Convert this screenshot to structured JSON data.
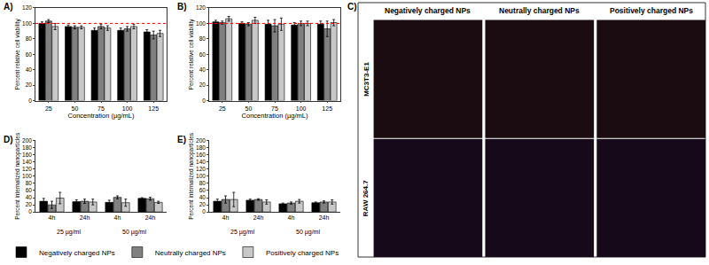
{
  "chart_data": [
    {
      "panel": "A)",
      "type": "bar",
      "x_label": "Concentration (µg/mL)",
      "y_label": "Percent relative cell viability",
      "categories": [
        "25",
        "50",
        "75",
        "100",
        "125"
      ],
      "series": [
        {
          "name": "Negatively charged NPs",
          "color": "#000000",
          "values": [
            100,
            96,
            91,
            91,
            89
          ],
          "errors": [
            2,
            2,
            3,
            3,
            3
          ]
        },
        {
          "name": "Neutrally charged NPs",
          "color": "#808080",
          "values": [
            103,
            95,
            96,
            93,
            85
          ],
          "errors": [
            2,
            2,
            3,
            3,
            5
          ]
        },
        {
          "name": "Positively charged NPs",
          "color": "#c8c8c8",
          "values": [
            96,
            95,
            94,
            96,
            87
          ],
          "errors": [
            4,
            2,
            3,
            3,
            4
          ]
        }
      ],
      "ylim": [
        0,
        120
      ],
      "yticks": [
        0,
        20,
        40,
        60,
        80,
        100,
        120
      ],
      "reference_line": {
        "value": 100,
        "color": "#ff0000",
        "line_style": "dot"
      },
      "legend": "bottom"
    },
    {
      "panel": "B)",
      "type": "bar",
      "x_label": "Concentration (µg/mL)",
      "y_label": "Percent relative cell viability",
      "categories": [
        "25",
        "50",
        "75",
        "100",
        "125"
      ],
      "series": [
        {
          "name": "Negatively charged NPs",
          "color": "#000000",
          "values": [
            102,
            100,
            99,
            98,
            99
          ],
          "errors": [
            2,
            2,
            5,
            3,
            4
          ]
        },
        {
          "name": "Neutrally charged NPs",
          "color": "#808080",
          "values": [
            101,
            99,
            97,
            100,
            93
          ],
          "errors": [
            2,
            2,
            8,
            3,
            10
          ]
        },
        {
          "name": "Positively charged NPs",
          "color": "#c8c8c8",
          "values": [
            106,
            104,
            99,
            100,
            101
          ],
          "errors": [
            3,
            4,
            8,
            3,
            4
          ]
        }
      ],
      "ylim": [
        0,
        120
      ],
      "yticks": [
        0,
        20,
        40,
        60,
        80,
        100,
        120
      ],
      "reference_line": {
        "value": 100,
        "color": "#ff0000",
        "line_style": "dot"
      }
    },
    {
      "panel": "D)",
      "type": "bar",
      "y_label": "Percent internalized nanoparticles",
      "categories": [
        "4h",
        "24h",
        "4h",
        "24h"
      ],
      "groups": [
        "25 µg/ml",
        "50 µg/ml"
      ],
      "series": [
        {
          "name": "Negatively charged NPs",
          "color": "#000000",
          "values": [
            30,
            29,
            27,
            38
          ],
          "errors": [
            8,
            5,
            6,
            2
          ]
        },
        {
          "name": "Neutrally charged NPs",
          "color": "#808080",
          "values": [
            20,
            30,
            41,
            37
          ],
          "errors": [
            10,
            6,
            4,
            4
          ]
        },
        {
          "name": "Positively charged NPs",
          "color": "#c8c8c8",
          "values": [
            39,
            28,
            26,
            27
          ],
          "errors": [
            16,
            8,
            10,
            3
          ]
        }
      ],
      "ylim": [
        0,
        200
      ],
      "yticks": [
        0,
        20,
        40,
        60,
        80,
        100,
        120,
        140,
        160,
        180,
        200
      ]
    },
    {
      "panel": "E)",
      "type": "bar",
      "y_label": "Percent internalized nanoparticles",
      "categories": [
        "4h",
        "24h",
        "4h",
        "24h"
      ],
      "groups": [
        "25 µg/ml",
        "50 µg/ml"
      ],
      "series": [
        {
          "name": "Negatively charged NPs",
          "color": "#000000",
          "values": [
            30,
            33,
            23,
            26
          ],
          "errors": [
            6,
            3,
            2,
            2
          ]
        },
        {
          "name": "Neutrally charged NPs",
          "color": "#808080",
          "values": [
            35,
            35,
            25,
            28
          ],
          "errors": [
            10,
            2,
            3,
            3
          ]
        },
        {
          "name": "Positively charged NPs",
          "color": "#c8c8c8",
          "values": [
            35,
            28,
            30,
            28
          ],
          "errors": [
            20,
            6,
            5,
            6
          ]
        }
      ],
      "ylim": [
        0,
        200
      ],
      "yticks": [
        0,
        20,
        40,
        60,
        80,
        100,
        120,
        140,
        160,
        180,
        200
      ]
    }
  ],
  "image_panel": {
    "panel": "C)",
    "columns": [
      "Negatively charged NPs",
      "Neutrally charged NPs",
      "Positively charged NPs"
    ],
    "rows": [
      "MC3T3-E1",
      "RAW 264.7"
    ]
  }
}
